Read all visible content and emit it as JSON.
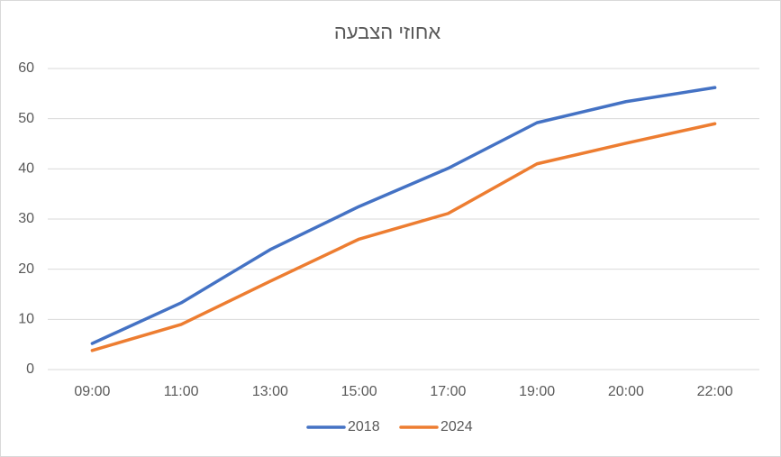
{
  "chart_data": {
    "type": "line",
    "title": "אחוזי הצבעה",
    "categories": [
      "09:00",
      "11:00",
      "13:00",
      "15:00",
      "17:00",
      "19:00",
      "20:00",
      "22:00"
    ],
    "series": [
      {
        "name": "2018",
        "color": "#4472c4",
        "values": [
          5.2,
          13.3,
          23.9,
          32.5,
          40.1,
          49.2,
          53.4,
          56.2
        ]
      },
      {
        "name": "2024",
        "color": "#ed7d31",
        "values": [
          3.8,
          9.0,
          17.6,
          26.0,
          31.1,
          41.0,
          45.1,
          49.0
        ]
      }
    ],
    "ylim": [
      0,
      60
    ],
    "yticks": [
      0,
      10,
      20,
      30,
      40,
      50,
      60
    ],
    "grid": true,
    "legend": "bottom"
  }
}
